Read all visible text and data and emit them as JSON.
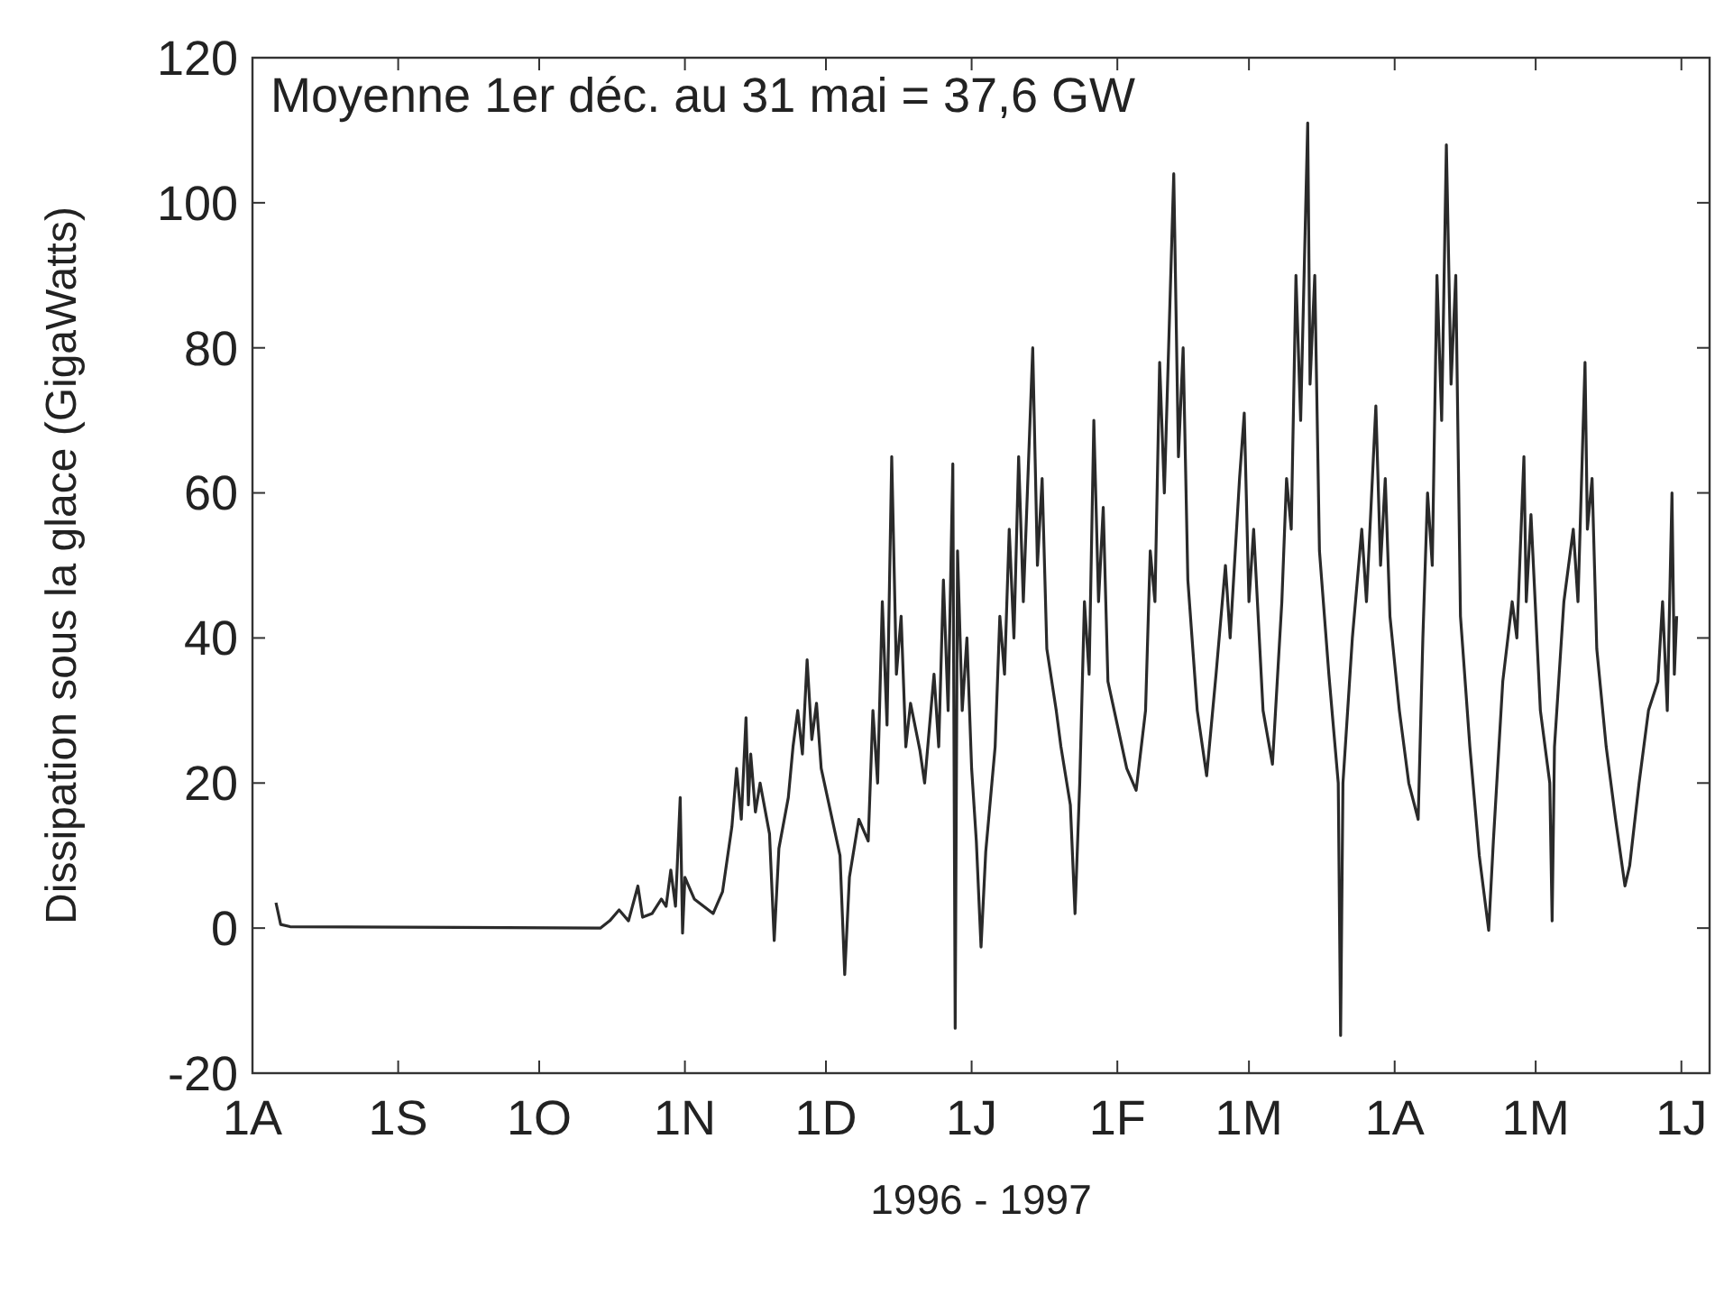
{
  "chart_data": {
    "type": "line",
    "xlabel": "1996 - 1997",
    "ylabel": "Dissipation sous la glace (GigaWatts)",
    "annotations": [
      "Moyenne 1er déc. au 31 mai = 37,6 GW"
    ],
    "xlim": [
      "1996-08-01",
      "1997-06-07"
    ],
    "xticks": [
      {
        "value": "1996-08-01",
        "label": "1A"
      },
      {
        "value": "1996-09-01",
        "label": "1S"
      },
      {
        "value": "1996-10-01",
        "label": "1O"
      },
      {
        "value": "1996-11-01",
        "label": "1N"
      },
      {
        "value": "1996-12-01",
        "label": "1D"
      },
      {
        "value": "1997-01-01",
        "label": "1J"
      },
      {
        "value": "1997-02-01",
        "label": "1F"
      },
      {
        "value": "1997-03-01",
        "label": "1M"
      },
      {
        "value": "1997-04-01",
        "label": "1A"
      },
      {
        "value": "1997-05-01",
        "label": "1M"
      },
      {
        "value": "1997-06-01",
        "label": "1J"
      }
    ],
    "ylim": [
      -20,
      120
    ],
    "yticks": [
      -20,
      0,
      20,
      40,
      60,
      80,
      100,
      120
    ],
    "grid": false,
    "marker": "none",
    "line_style": "solid",
    "series": [
      {
        "color": "#2a2a2a",
        "x": [
          "1996-08-06",
          "1996-08-07",
          "1996-08-09",
          "1996-10-14",
          "1996-10-16",
          "1996-10-18",
          "1996-10-20",
          "1996-10-22",
          "1996-10-23",
          "1996-10-25",
          "1996-10-27",
          "1996-10-28",
          "1996-10-29",
          "1996-10-30",
          "1996-10-31",
          "1996-10-31T12:00",
          "1996-11-01",
          "1996-11-03",
          "1996-11-05",
          "1996-11-07",
          "1996-11-09",
          "1996-11-10",
          "1996-11-11",
          "1996-11-12",
          "1996-11-13",
          "1996-11-14",
          "1996-11-14T12:00",
          "1996-11-15",
          "1996-11-16",
          "1996-11-17",
          "1996-11-19",
          "1996-11-20",
          "1996-11-21",
          "1996-11-23",
          "1996-11-24",
          "1996-11-25",
          "1996-11-26",
          "1996-11-27",
          "1996-11-28",
          "1996-11-29",
          "1996-11-30",
          "1996-12-02",
          "1996-12-04",
          "1996-12-05",
          "1996-12-06",
          "1996-12-08",
          "1996-12-10",
          "1996-12-11",
          "1996-12-12",
          "1996-12-13",
          "1996-12-14",
          "1996-12-15",
          "1996-12-16",
          "1996-12-17",
          "1996-12-18",
          "1996-12-19",
          "1996-12-21",
          "1996-12-22",
          "1996-12-24",
          "1996-12-25",
          "1996-12-26",
          "1996-12-27",
          "1996-12-28",
          "1996-12-28T12:00",
          "1996-12-29",
          "1996-12-30",
          "1996-12-31",
          "1997-01-01",
          "1997-01-02",
          "1997-01-03",
          "1997-01-04",
          "1997-01-06",
          "1997-01-07",
          "1997-01-08",
          "1997-01-09",
          "1997-01-10",
          "1997-01-11",
          "1997-01-12",
          "1997-01-14",
          "1997-01-15",
          "1997-01-16",
          "1997-01-17",
          "1997-01-19",
          "1997-01-20",
          "1997-01-22",
          "1997-01-23",
          "1997-01-24",
          "1997-01-25",
          "1997-01-26",
          "1997-01-27",
          "1997-01-28",
          "1997-01-29",
          "1997-01-30",
          "1997-02-01",
          "1997-02-03",
          "1997-02-05",
          "1997-02-07",
          "1997-02-08",
          "1997-02-09",
          "1997-02-10",
          "1997-02-11",
          "1997-02-13",
          "1997-02-14",
          "1997-02-15",
          "1997-02-16",
          "1997-02-18",
          "1997-02-20",
          "1997-02-22",
          "1997-02-24",
          "1997-02-25",
          "1997-02-27",
          "1997-02-28",
          "1997-03-01",
          "1997-03-02",
          "1997-03-04",
          "1997-03-06",
          "1997-03-08",
          "1997-03-09",
          "1997-03-10",
          "1997-03-11",
          "1997-03-12",
          "1997-03-13T12:00",
          "1997-03-14",
          "1997-03-15",
          "1997-03-16",
          "1997-03-18",
          "1997-03-20",
          "1997-03-20T12:00",
          "1997-03-21",
          "1997-03-23",
          "1997-03-25",
          "1997-03-26",
          "1997-03-28",
          "1997-03-29",
          "1997-03-30",
          "1997-03-31",
          "1997-04-02",
          "1997-04-04",
          "1997-04-06",
          "1997-04-07",
          "1997-04-08",
          "1997-04-09",
          "1997-04-10",
          "1997-04-11",
          "1997-04-12",
          "1997-04-13",
          "1997-04-14",
          "1997-04-15",
          "1997-04-17",
          "1997-04-19",
          "1997-04-21",
          "1997-04-22",
          "1997-04-24",
          "1997-04-26",
          "1997-04-27",
          "1997-04-28T12:00",
          "1997-04-29",
          "1997-04-30",
          "1997-05-02",
          "1997-05-04",
          "1997-05-04T12:00",
          "1997-05-05",
          "1997-05-07",
          "1997-05-09",
          "1997-05-10",
          "1997-05-11T12:00",
          "1997-05-12",
          "1997-05-13",
          "1997-05-14",
          "1997-05-16",
          "1997-05-18",
          "1997-05-20",
          "1997-05-21",
          "1997-05-23",
          "1997-05-25",
          "1997-05-27",
          "1997-05-28",
          "1997-05-29",
          "1997-05-30",
          "1997-05-30T12:00",
          "1997-05-31"
        ],
        "values": [
          3.5,
          0.5,
          0.2,
          0,
          1,
          2.5,
          1,
          5.8,
          1.5,
          2,
          4,
          3,
          8,
          3,
          18,
          -0.7,
          7,
          4,
          3,
          2,
          5,
          9.5,
          14,
          22,
          15,
          29,
          17,
          24,
          16,
          20,
          13,
          -1.7,
          11,
          18,
          25,
          30,
          24,
          37,
          26,
          31,
          22,
          16,
          10,
          -6.4,
          7,
          15,
          12,
          30,
          20,
          45,
          28,
          65,
          35,
          43,
          25,
          31,
          24.5,
          20,
          35,
          25,
          48,
          30,
          64,
          -13.8,
          52,
          30,
          40,
          22,
          12,
          -2.6,
          10.5,
          25,
          43,
          35,
          55,
          40,
          65,
          45,
          80,
          50,
          62,
          38.5,
          30,
          25,
          17,
          2,
          20,
          45,
          35,
          70,
          45,
          58,
          34,
          28,
          22,
          19,
          30,
          52,
          45,
          78,
          60,
          104,
          65,
          80,
          48,
          30,
          21,
          35,
          50,
          40,
          62,
          71,
          45,
          55,
          30,
          22.6,
          45,
          62,
          55,
          90,
          70,
          111,
          75,
          90,
          52,
          35,
          20,
          -14.8,
          20,
          40,
          55,
          45,
          72,
          50,
          62,
          43,
          30,
          20,
          15,
          40,
          60,
          50,
          90,
          70,
          108,
          75,
          90,
          43,
          25,
          10,
          -0.3,
          12,
          34,
          45,
          40,
          65,
          45,
          57,
          30,
          20,
          1,
          25,
          45,
          55,
          45,
          78,
          55,
          62,
          38.5,
          25,
          15,
          5.8,
          8.6,
          20,
          30,
          34,
          45,
          30,
          60,
          35,
          43
        ]
      }
    ]
  }
}
